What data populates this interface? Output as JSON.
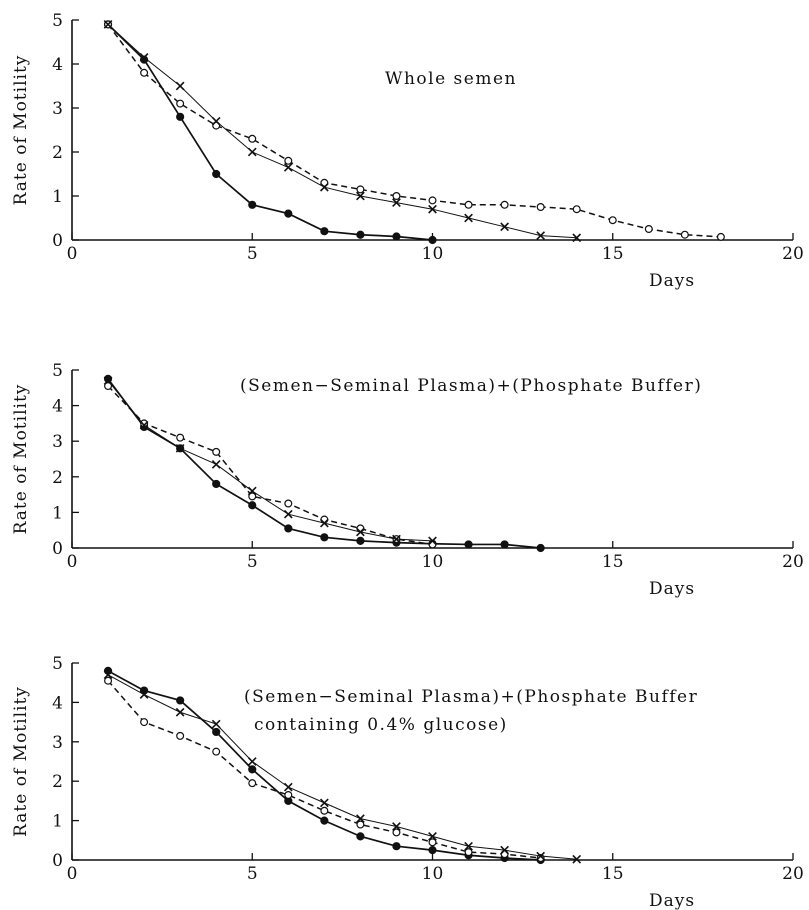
{
  "chart_data": [
    {
      "type": "line",
      "annotation": [
        "Whole semen"
      ],
      "xlabel": "Days",
      "ylabel": "Rate of Motility",
      "xlim": [
        0,
        20
      ],
      "ylim": [
        0,
        5
      ],
      "xticks": [
        0,
        5,
        10,
        15,
        20
      ],
      "yticks": [
        0,
        1,
        2,
        3,
        4,
        5
      ],
      "series": [
        {
          "marker": "filled-circle",
          "line": "solid",
          "x": [
            1,
            2,
            3,
            4,
            5,
            6,
            7,
            8,
            9,
            10
          ],
          "y": [
            4.9,
            4.1,
            2.8,
            1.5,
            0.8,
            0.6,
            0.2,
            0.12,
            0.08,
            0.0
          ]
        },
        {
          "marker": "open-circle",
          "line": "dashed",
          "x": [
            1,
            2,
            3,
            4,
            5,
            6,
            7,
            8,
            9,
            10,
            11,
            12,
            13,
            14,
            15,
            16,
            17,
            18
          ],
          "y": [
            4.9,
            3.8,
            3.1,
            2.6,
            2.3,
            1.8,
            1.3,
            1.15,
            1.0,
            0.9,
            0.8,
            0.8,
            0.75,
            0.7,
            0.45,
            0.25,
            0.12,
            0.07
          ]
        },
        {
          "marker": "cross",
          "line": "solid-thin",
          "x": [
            1,
            2,
            3,
            4,
            5,
            6,
            7,
            8,
            9,
            10,
            11,
            12,
            13,
            14
          ],
          "y": [
            4.9,
            4.15,
            3.5,
            2.7,
            2.0,
            1.65,
            1.2,
            1.0,
            0.85,
            0.7,
            0.5,
            0.3,
            0.1,
            0.05
          ]
        }
      ]
    },
    {
      "type": "line",
      "annotation": [
        "(Semen−Seminal Plasma)+(Phosphate Buffer)"
      ],
      "xlabel": "Days",
      "ylabel": "Rate of Motility",
      "xlim": [
        0,
        20
      ],
      "ylim": [
        0,
        5
      ],
      "xticks": [
        0,
        5,
        10,
        15,
        20
      ],
      "yticks": [
        0,
        1,
        2,
        3,
        4,
        5
      ],
      "series": [
        {
          "marker": "filled-circle",
          "line": "solid",
          "x": [
            1,
            2,
            3,
            4,
            5,
            6,
            7,
            8,
            9,
            10,
            11,
            12,
            13
          ],
          "y": [
            4.75,
            3.4,
            2.8,
            1.8,
            1.2,
            0.55,
            0.3,
            0.2,
            0.15,
            0.12,
            0.1,
            0.1,
            0.0
          ]
        },
        {
          "marker": "open-circle",
          "line": "dashed",
          "x": [
            1,
            2,
            3,
            4,
            5,
            6,
            7,
            8,
            9,
            10
          ],
          "y": [
            4.55,
            3.5,
            3.1,
            2.7,
            1.45,
            1.25,
            0.8,
            0.55,
            0.25,
            0.1
          ]
        },
        {
          "marker": "cross",
          "line": "solid-thin",
          "x": [
            1,
            2,
            3,
            4,
            5,
            6,
            7,
            8,
            9,
            10
          ],
          "y": [
            4.7,
            3.45,
            2.8,
            2.35,
            1.6,
            0.95,
            0.7,
            0.45,
            0.25,
            0.2
          ]
        }
      ]
    },
    {
      "type": "line",
      "annotation": [
        "(Semen−Seminal Plasma)+(Phosphate Buffer",
        "containing 0.4% glucose)"
      ],
      "xlabel": "Days",
      "ylabel": "Rate of Motility",
      "xlim": [
        0,
        20
      ],
      "ylim": [
        0,
        5
      ],
      "xticks": [
        0,
        5,
        10,
        15,
        20
      ],
      "yticks": [
        0,
        1,
        2,
        3,
        4,
        5
      ],
      "series": [
        {
          "marker": "filled-circle",
          "line": "solid",
          "x": [
            1,
            2,
            3,
            4,
            5,
            6,
            7,
            8,
            9,
            10,
            11,
            12,
            13
          ],
          "y": [
            4.8,
            4.3,
            4.05,
            3.25,
            2.3,
            1.5,
            1.0,
            0.6,
            0.35,
            0.25,
            0.12,
            0.05,
            0.0
          ]
        },
        {
          "marker": "open-circle",
          "line": "dashed",
          "x": [
            1,
            2,
            3,
            4,
            5,
            6,
            7,
            8,
            9,
            10,
            11,
            12,
            13
          ],
          "y": [
            4.55,
            3.5,
            3.15,
            2.75,
            1.95,
            1.65,
            1.25,
            0.9,
            0.7,
            0.45,
            0.2,
            0.15,
            0.05
          ]
        },
        {
          "marker": "cross",
          "line": "solid-thin",
          "x": [
            1,
            2,
            3,
            4,
            5,
            6,
            7,
            8,
            9,
            10,
            11,
            12,
            13,
            14
          ],
          "y": [
            4.7,
            4.2,
            3.75,
            3.45,
            2.5,
            1.85,
            1.45,
            1.05,
            0.85,
            0.6,
            0.35,
            0.25,
            0.1,
            0.02
          ]
        }
      ]
    }
  ]
}
